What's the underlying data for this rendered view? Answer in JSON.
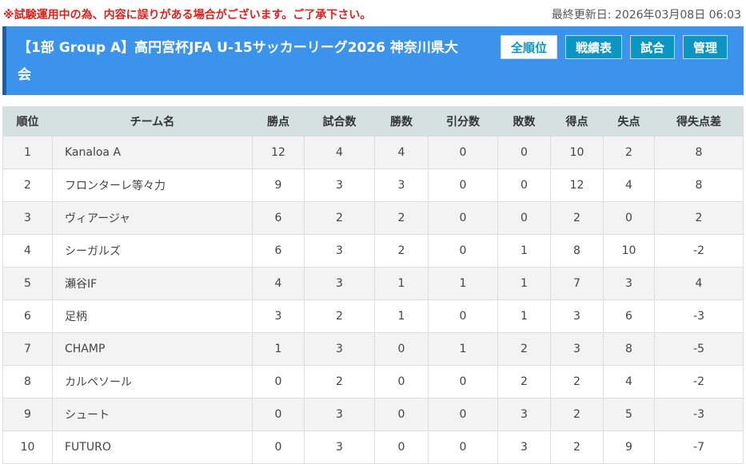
{
  "notice": "※試験運用中の為、内容に誤りがある場合がございます。ご了承下さい。",
  "updated": "最終更新日: 2026年03月08日 06:03",
  "title": "【1部 Group A】高円宮杯JFA U-15サッカーリーグ2026 神奈川県大会",
  "nav": [
    {
      "label": "全順位",
      "active": true
    },
    {
      "label": "戦績表"
    },
    {
      "label": "試合"
    },
    {
      "label": "管理"
    }
  ],
  "colors": {
    "header": "#3b93ec",
    "button": "#0a95c2",
    "notice": "#e0201b"
  },
  "table": {
    "columns": [
      "順位",
      "チーム名",
      "勝点",
      "試合数",
      "勝数",
      "引分数",
      "敗数",
      "得点",
      "失点",
      "得失点差"
    ],
    "rows": [
      [
        "1",
        "Kanaloa A",
        "12",
        "4",
        "4",
        "0",
        "0",
        "10",
        "2",
        "8"
      ],
      [
        "2",
        "フロンターレ等々力",
        "9",
        "3",
        "3",
        "0",
        "0",
        "12",
        "4",
        "8"
      ],
      [
        "3",
        "ヴィアージャ",
        "6",
        "2",
        "2",
        "0",
        "0",
        "2",
        "0",
        "2"
      ],
      [
        "4",
        "シーガルズ",
        "6",
        "3",
        "2",
        "0",
        "1",
        "8",
        "10",
        "-2"
      ],
      [
        "5",
        "瀬谷IF",
        "4",
        "3",
        "1",
        "1",
        "1",
        "7",
        "3",
        "4"
      ],
      [
        "6",
        "足柄",
        "3",
        "2",
        "1",
        "0",
        "1",
        "3",
        "6",
        "-3"
      ],
      [
        "7",
        "CHAMP",
        "1",
        "3",
        "0",
        "1",
        "2",
        "3",
        "8",
        "-5"
      ],
      [
        "8",
        "カルペソール",
        "0",
        "2",
        "0",
        "0",
        "2",
        "2",
        "4",
        "-2"
      ],
      [
        "9",
        "シュート",
        "0",
        "3",
        "0",
        "0",
        "3",
        "2",
        "5",
        "-3"
      ],
      [
        "10",
        "FUTURO",
        "0",
        "3",
        "0",
        "0",
        "3",
        "2",
        "9",
        "-7"
      ]
    ]
  }
}
